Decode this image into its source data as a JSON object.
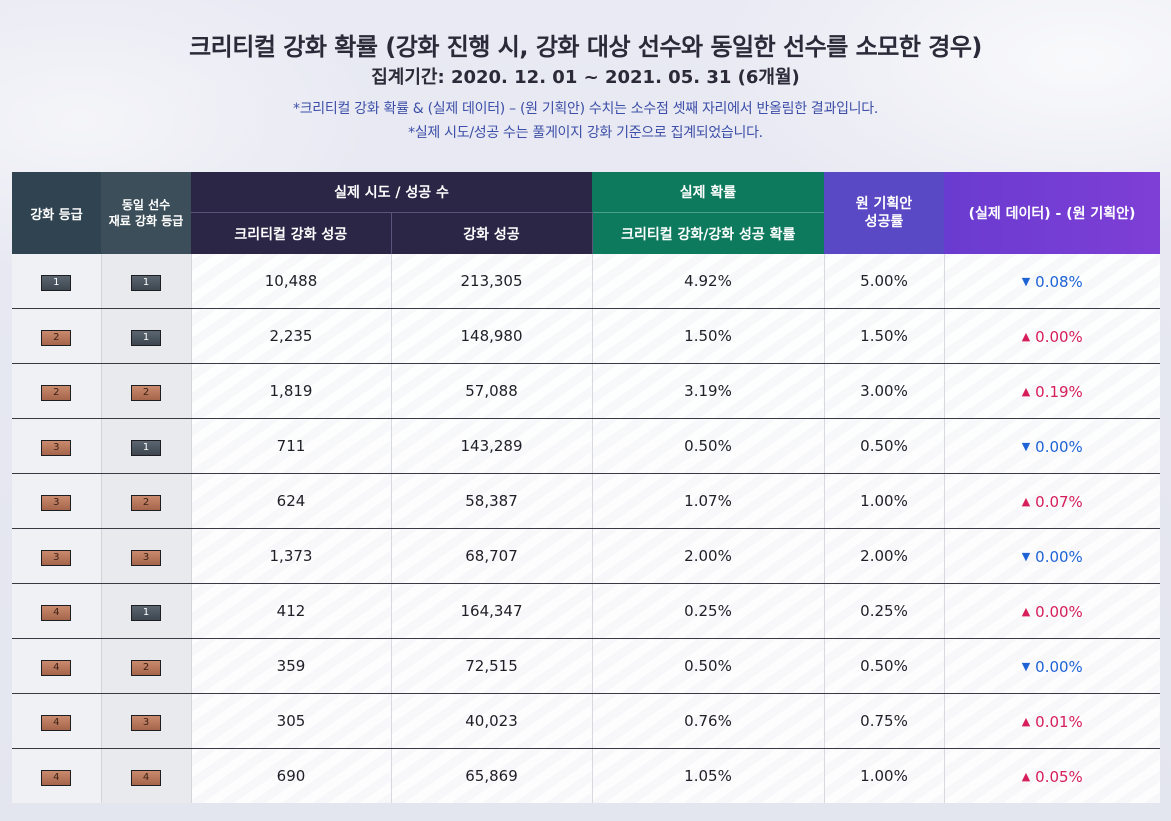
{
  "header": {
    "title": "크리티컬 강화 확률 (강화 진행 시, 강화 대상 선수와 동일한 선수를 소모한 경우)",
    "period": "집계기간: 2020. 12. 01 ~ 2021. 05. 31 (6개월)",
    "note1": "*크리티컬 강화 확률 & (실제 데이터) – (원 기획안) 수치는 소수점 셋째 자리에서 반올림한 결과입니다.",
    "note2": "*실제 시도/성공 수는 풀게이지 강화 기준으로 집계되었습니다."
  },
  "table": {
    "columns": {
      "grade": "강화 등급",
      "grade2": "동일 선수\n재료 강화 등급",
      "attempt_group": "실제 시도 / 성공 수",
      "critical_success": "크리티컬 강화 성공",
      "success": "강화 성공",
      "real_group": "실제 확률",
      "real_rate": "크리티컬 강화/강화 성공 확률",
      "plan_rate": "원 기획안\n성공률",
      "diff": "(실제 데이터) - (원 기획안)"
    },
    "rows": [
      {
        "grade": "1",
        "grade_tier": "dark",
        "grade2": "1",
        "grade2_tier": "dark",
        "critical": "10,488",
        "success": "213,305",
        "real": "4.92%",
        "plan": "5.00%",
        "diff": "0.08%",
        "dir": "down"
      },
      {
        "grade": "2",
        "grade_tier": "bronze",
        "grade2": "1",
        "grade2_tier": "dark",
        "critical": "2,235",
        "success": "148,980",
        "real": "1.50%",
        "plan": "1.50%",
        "diff": "0.00%",
        "dir": "up"
      },
      {
        "grade": "2",
        "grade_tier": "bronze",
        "grade2": "2",
        "grade2_tier": "bronze",
        "critical": "1,819",
        "success": "57,088",
        "real": "3.19%",
        "plan": "3.00%",
        "diff": "0.19%",
        "dir": "up"
      },
      {
        "grade": "3",
        "grade_tier": "bronze",
        "grade2": "1",
        "grade2_tier": "dark",
        "critical": "711",
        "success": "143,289",
        "real": "0.50%",
        "plan": "0.50%",
        "diff": "0.00%",
        "dir": "down"
      },
      {
        "grade": "3",
        "grade_tier": "bronze",
        "grade2": "2",
        "grade2_tier": "bronze",
        "critical": "624",
        "success": "58,387",
        "real": "1.07%",
        "plan": "1.00%",
        "diff": "0.07%",
        "dir": "up"
      },
      {
        "grade": "3",
        "grade_tier": "bronze",
        "grade2": "3",
        "grade2_tier": "bronze",
        "critical": "1,373",
        "success": "68,707",
        "real": "2.00%",
        "plan": "2.00%",
        "diff": "0.00%",
        "dir": "down"
      },
      {
        "grade": "4",
        "grade_tier": "bronze",
        "grade2": "1",
        "grade2_tier": "dark",
        "critical": "412",
        "success": "164,347",
        "real": "0.25%",
        "plan": "0.25%",
        "diff": "0.00%",
        "dir": "up"
      },
      {
        "grade": "4",
        "grade_tier": "bronze",
        "grade2": "2",
        "grade2_tier": "bronze",
        "critical": "359",
        "success": "72,515",
        "real": "0.50%",
        "plan": "0.50%",
        "diff": "0.00%",
        "dir": "down"
      },
      {
        "grade": "4",
        "grade_tier": "bronze",
        "grade2": "3",
        "grade2_tier": "bronze",
        "critical": "305",
        "success": "40,023",
        "real": "0.76%",
        "plan": "0.75%",
        "diff": "0.01%",
        "dir": "up"
      },
      {
        "grade": "4",
        "grade_tier": "bronze",
        "grade2": "4",
        "grade2_tier": "bronze",
        "critical": "690",
        "success": "65,869",
        "real": "1.05%",
        "plan": "1.00%",
        "diff": "0.05%",
        "dir": "up"
      }
    ]
  },
  "colors": {
    "up": "#d61e5a",
    "down": "#1e63d6"
  },
  "icons": {
    "up": "triangle-up-icon",
    "down": "triangle-down-icon"
  }
}
